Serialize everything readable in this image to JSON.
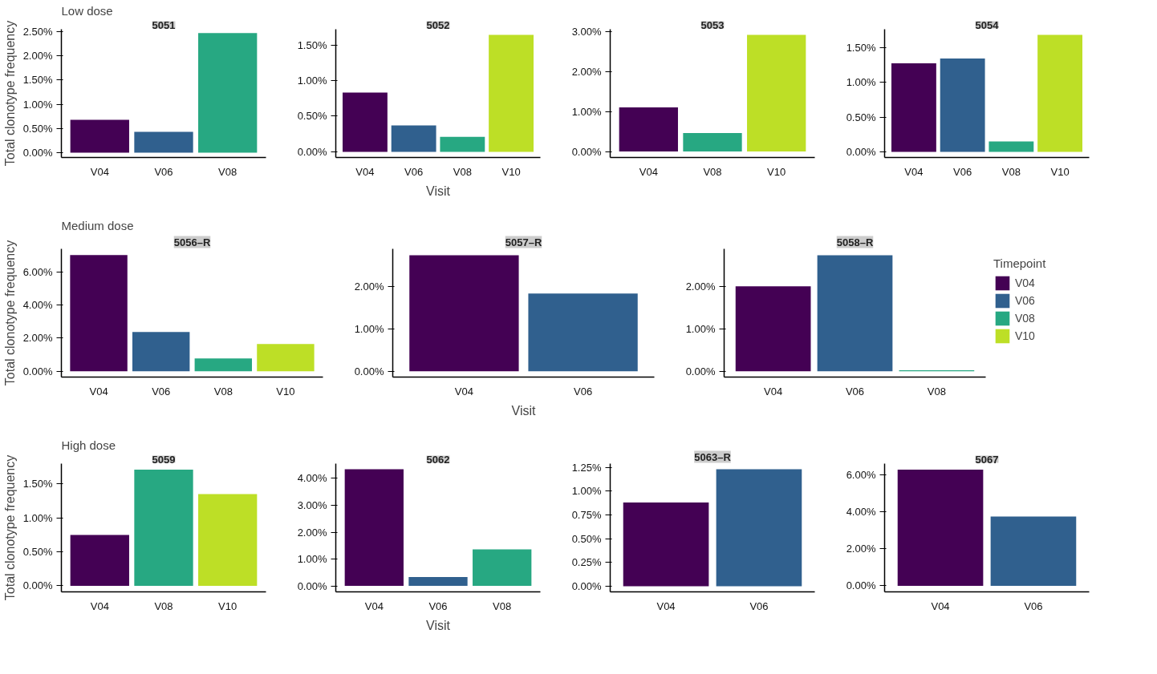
{
  "chart_data": [
    {
      "type": "bar",
      "subtitle": "Low dose",
      "title": "5051",
      "ylabel": "Total clonotype frequency",
      "categories": [
        "V04",
        "V06",
        "V08"
      ],
      "series": [
        {
          "color": "#440154",
          "values": [
            0.68,
            null,
            null
          ]
        },
        {
          "color": "#30608e",
          "values": [
            null,
            0.43,
            null
          ]
        },
        {
          "color": "#27a882",
          "values": [
            null,
            null,
            2.47
          ]
        }
      ],
      "ylim": [
        -0.1,
        2.55
      ],
      "yticks": [
        {
          "value": 0,
          "label": "0.00%"
        },
        {
          "value": 0.5,
          "label": "0.50%"
        },
        {
          "value": 1,
          "label": "1.00%"
        },
        {
          "value": 1.5,
          "label": "1.50%"
        },
        {
          "value": 2,
          "label": "2.00%"
        },
        {
          "value": 2.5,
          "label": "2.50%"
        }
      ]
    },
    {
      "type": "bar",
      "title": "5052",
      "xlabel": "Visit",
      "categories": [
        "V04",
        "V06",
        "V08",
        "V10"
      ],
      "series": [
        {
          "color": "#440154",
          "values": [
            0.83,
            null,
            null,
            null
          ]
        },
        {
          "color": "#30608e",
          "values": [
            null,
            0.37,
            null,
            null
          ]
        },
        {
          "color": "#27a882",
          "values": [
            null,
            null,
            0.21,
            null
          ]
        },
        {
          "color": "#bddf26",
          "values": [
            null,
            null,
            null,
            1.64
          ]
        }
      ],
      "ylim": [
        -0.08,
        1.72
      ],
      "yticks": [
        {
          "value": 0,
          "label": "0.00%"
        },
        {
          "value": 0.5,
          "label": "0.50%"
        },
        {
          "value": 1,
          "label": "1.00%"
        },
        {
          "value": 1.5,
          "label": "1.50%"
        }
      ]
    },
    {
      "type": "bar",
      "title": "5053",
      "categories": [
        "V04",
        "V08",
        "V10"
      ],
      "series": [
        {
          "color": "#440154",
          "values": [
            1.1,
            null,
            null
          ]
        },
        {
          "color": "#27a882",
          "values": [
            null,
            0.46,
            null
          ]
        },
        {
          "color": "#bddf26",
          "values": [
            null,
            null,
            2.91
          ]
        }
      ],
      "ylim": [
        -0.15,
        3.05
      ],
      "yticks": [
        {
          "value": 0,
          "label": "0.00%"
        },
        {
          "value": 1,
          "label": "1.00%"
        },
        {
          "value": 2,
          "label": "2.00%"
        },
        {
          "value": 3,
          "label": "3.00%"
        }
      ]
    },
    {
      "type": "bar",
      "title": "5054",
      "categories": [
        "V04",
        "V06",
        "V08",
        "V10"
      ],
      "series": [
        {
          "color": "#440154",
          "values": [
            1.27,
            null,
            null,
            null
          ]
        },
        {
          "color": "#30608e",
          "values": [
            null,
            1.34,
            null,
            null
          ]
        },
        {
          "color": "#27a882",
          "values": [
            null,
            null,
            0.15,
            null
          ]
        },
        {
          "color": "#bddf26",
          "values": [
            null,
            null,
            null,
            1.68
          ]
        }
      ],
      "ylim": [
        -0.08,
        1.76
      ],
      "yticks": [
        {
          "value": 0,
          "label": "0.00%"
        },
        {
          "value": 0.5,
          "label": "0.50%"
        },
        {
          "value": 1,
          "label": "1.00%"
        },
        {
          "value": 1.5,
          "label": "1.50%"
        }
      ]
    },
    {
      "type": "bar",
      "subtitle": "Medium dose",
      "title": "5056–R",
      "ylabel": "Total clonotype frequency",
      "categories": [
        "V04",
        "V06",
        "V08",
        "V10"
      ],
      "series": [
        {
          "color": "#440154",
          "values": [
            7.02,
            null,
            null,
            null
          ]
        },
        {
          "color": "#30608e",
          "values": [
            null,
            2.38,
            null,
            null
          ]
        },
        {
          "color": "#27a882",
          "values": [
            null,
            null,
            0.78,
            null
          ]
        },
        {
          "color": "#bddf26",
          "values": [
            null,
            null,
            null,
            1.65
          ]
        }
      ],
      "ylim": [
        -0.35,
        7.4
      ],
      "yticks": [
        {
          "value": 0,
          "label": "0.00%"
        },
        {
          "value": 2,
          "label": "2.00%"
        },
        {
          "value": 4,
          "label": "4.00%"
        },
        {
          "value": 6,
          "label": "6.00%"
        }
      ]
    },
    {
      "type": "bar",
      "title": "5057–R",
      "xlabel": "Visit",
      "categories": [
        "V04",
        "V06"
      ],
      "series": [
        {
          "color": "#440154",
          "values": [
            2.75,
            null
          ]
        },
        {
          "color": "#30608e",
          "values": [
            null,
            1.84
          ]
        }
      ],
      "ylim": [
        -0.14,
        2.9
      ],
      "yticks": [
        {
          "value": 0,
          "label": "0.00%"
        },
        {
          "value": 1,
          "label": "1.00%"
        },
        {
          "value": 2,
          "label": "2.00%"
        }
      ]
    },
    {
      "type": "bar",
      "title": "5058–R",
      "legend": "right",
      "legend_title": "Timepoint",
      "categories": [
        "V04",
        "V06",
        "V08"
      ],
      "series": [
        {
          "name": "V04",
          "color": "#440154",
          "values": [
            2.01,
            null,
            null
          ]
        },
        {
          "name": "V06",
          "color": "#30608e",
          "values": [
            null,
            2.75,
            null
          ]
        },
        {
          "name": "V08",
          "color": "#27a882",
          "values": [
            null,
            null,
            0.02
          ]
        },
        {
          "name": "V10",
          "color": "#bddf26",
          "values": [
            null,
            null,
            null
          ]
        }
      ],
      "ylim": [
        -0.14,
        2.9
      ],
      "yticks": [
        {
          "value": 0,
          "label": "0.00%"
        },
        {
          "value": 1,
          "label": "1.00%"
        },
        {
          "value": 2,
          "label": "2.00%"
        }
      ]
    },
    {
      "type": "bar",
      "subtitle": "High dose",
      "title": "5059",
      "ylabel": "Total clonotype frequency",
      "categories": [
        "V04",
        "V08",
        "V10"
      ],
      "series": [
        {
          "color": "#440154",
          "values": [
            0.75,
            null,
            null
          ]
        },
        {
          "color": "#27a882",
          "values": [
            null,
            1.71,
            null
          ]
        },
        {
          "color": "#bddf26",
          "values": [
            null,
            null,
            1.35
          ]
        }
      ],
      "ylim": [
        -0.09,
        1.8
      ],
      "yticks": [
        {
          "value": 0,
          "label": "0.00%"
        },
        {
          "value": 0.5,
          "label": "0.50%"
        },
        {
          "value": 1,
          "label": "1.00%"
        },
        {
          "value": 1.5,
          "label": "1.50%"
        }
      ]
    },
    {
      "type": "bar",
      "title": "5062",
      "xlabel": "Visit",
      "categories": [
        "V04",
        "V06",
        "V08"
      ],
      "series": [
        {
          "color": "#440154",
          "values": [
            4.34,
            null,
            null
          ]
        },
        {
          "color": "#30608e",
          "values": [
            null,
            0.33,
            null
          ]
        },
        {
          "color": "#27a882",
          "values": [
            null,
            null,
            1.36
          ]
        }
      ],
      "ylim": [
        -0.22,
        4.55
      ],
      "yticks": [
        {
          "value": 0,
          "label": "0.00%"
        },
        {
          "value": 1,
          "label": "1.00%"
        },
        {
          "value": 2,
          "label": "2.00%"
        },
        {
          "value": 3,
          "label": "3.00%"
        },
        {
          "value": 4,
          "label": "4.00%"
        }
      ]
    },
    {
      "type": "bar",
      "title": "5063–R",
      "categories": [
        "V04",
        "V06"
      ],
      "series": [
        {
          "color": "#440154",
          "values": [
            0.88,
            null
          ]
        },
        {
          "color": "#30608e",
          "values": [
            null,
            1.23
          ]
        }
      ],
      "ylim": [
        -0.06,
        1.29
      ],
      "yticks": [
        {
          "value": 0,
          "label": "0.00%"
        },
        {
          "value": 0.25,
          "label": "0.25%"
        },
        {
          "value": 0.5,
          "label": "0.50%"
        },
        {
          "value": 0.75,
          "label": "0.75%"
        },
        {
          "value": 1,
          "label": "1.00%"
        },
        {
          "value": 1.25,
          "label": "1.25%"
        }
      ]
    },
    {
      "type": "bar",
      "title": "5067",
      "categories": [
        "V04",
        "V06"
      ],
      "series": [
        {
          "color": "#440154",
          "values": [
            6.27,
            null
          ]
        },
        {
          "color": "#30608e",
          "values": [
            null,
            3.74
          ]
        }
      ],
      "ylim": [
        -0.33,
        6.6
      ],
      "yticks": [
        {
          "value": 0,
          "label": "0.00%"
        },
        {
          "value": 2,
          "label": "2.00%"
        },
        {
          "value": 4,
          "label": "4.00%"
        },
        {
          "value": 6,
          "label": "6.00%"
        }
      ]
    }
  ]
}
